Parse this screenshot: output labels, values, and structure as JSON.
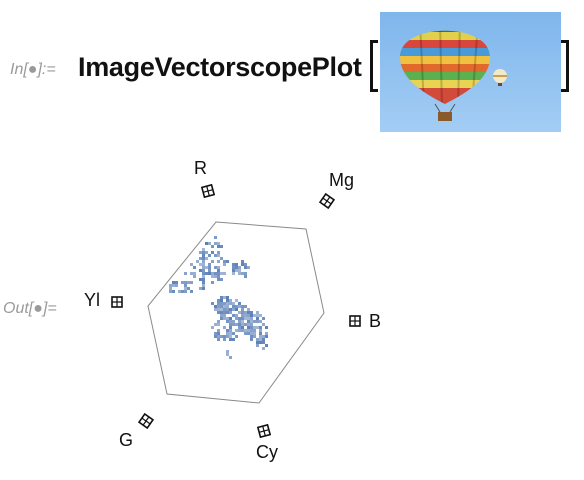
{
  "input_cell": {
    "label": "In[●]:=",
    "function_name": "ImageVectorscopePlot",
    "open_bracket": "[",
    "close_bracket": "]",
    "image_content": "hot-air-balloon-photo"
  },
  "output_cell": {
    "label": "Out[●]="
  },
  "vectorscope": {
    "targets": [
      {
        "key": "R",
        "label": "R"
      },
      {
        "key": "Mg",
        "label": "Mg"
      },
      {
        "key": "B",
        "label": "B"
      },
      {
        "key": "Cy",
        "label": "Cy"
      },
      {
        "key": "G",
        "label": "G"
      },
      {
        "key": "Yl",
        "label": "Yl"
      }
    ]
  },
  "colors": {
    "trace": "#5b7fb8",
    "hexagon": "#8a8a8a",
    "sky": "#8ec1f0",
    "label_gray": "#9a9a9a"
  }
}
